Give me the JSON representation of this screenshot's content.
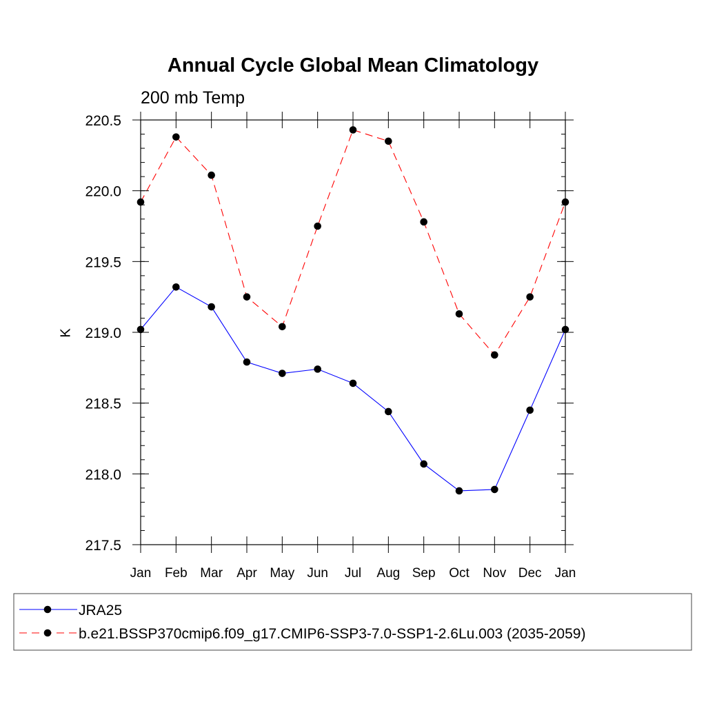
{
  "chart_data": {
    "type": "line",
    "title": "Annual Cycle Global Mean Climatology",
    "subtitle": "200 mb Temp",
    "xlabel": "",
    "ylabel": "K",
    "categories": [
      "Jan",
      "Feb",
      "Mar",
      "Apr",
      "May",
      "Jun",
      "Jul",
      "Aug",
      "Sep",
      "Oct",
      "Nov",
      "Dec",
      "Jan"
    ],
    "ylim": [
      217.5,
      220.5
    ],
    "yticks": [
      217.5,
      218.0,
      218.5,
      219.0,
      219.5,
      220.0,
      220.5
    ],
    "ytick_labels": [
      "217.5",
      "218.0",
      "218.5",
      "219.0",
      "219.5",
      "220.0",
      "220.5"
    ],
    "legend_position": "bottom",
    "series": [
      {
        "name": "JRA25",
        "color": "#0000ff",
        "dash": "solid",
        "values": [
          219.02,
          219.32,
          219.18,
          218.79,
          218.71,
          218.74,
          218.64,
          218.44,
          218.07,
          217.88,
          217.89,
          218.45,
          219.02
        ]
      },
      {
        "name": "b.e21.BSSP370cmip6.f09_g17.CMIP6-SSP3-7.0-SSP1-2.6Lu.003 (2035-2059)",
        "color": "#ff0000",
        "dash": "dashed",
        "values": [
          219.92,
          220.38,
          220.11,
          219.25,
          219.04,
          219.75,
          220.43,
          220.35,
          219.78,
          219.13,
          218.84,
          219.25,
          219.92
        ]
      }
    ]
  }
}
